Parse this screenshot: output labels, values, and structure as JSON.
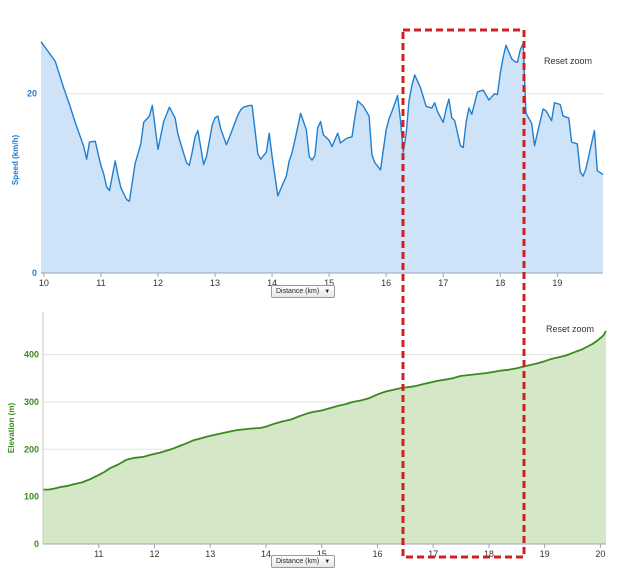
{
  "colors": {
    "speed_line": "#1f7fd0",
    "speed_fill": "#cfe3f8",
    "speed_axis_text": "#1f7fd0",
    "elev_line": "#3a8a1e",
    "elev_fill": "#d4e8c8",
    "elev_axis_text": "#3a8a1e",
    "highlight": "#d11f1f"
  },
  "reset_zoom_label": "Reset zoom",
  "distance_select": {
    "label": "Distance (km)",
    "arrow": "▼"
  },
  "chart_data": [
    {
      "type": "area",
      "ylabel": "Speed (km/h)",
      "xlabel": "",
      "xlim": [
        9.95,
        19.8
      ],
      "ylim": [
        0,
        28
      ],
      "x_ticks": [
        "10",
        "11",
        "12",
        "13",
        "14",
        "15",
        "16",
        "17",
        "18",
        "19"
      ],
      "y_ticks": [
        "0",
        "20"
      ],
      "grid": "horizontal",
      "series": [
        {
          "x": [
            9.95,
            10.2,
            10.35,
            10.45,
            10.55,
            10.7,
            10.75,
            10.8,
            10.9,
            11.0,
            11.05,
            11.1,
            11.15,
            11.25,
            11.3,
            11.35,
            11.45,
            11.5,
            11.6,
            11.7,
            11.75,
            11.85,
            11.9,
            12.0,
            12.1,
            12.2,
            12.3,
            12.35,
            12.4,
            12.5,
            12.55,
            12.6,
            12.65,
            12.7,
            12.8,
            12.85,
            12.95,
            13.0,
            13.05,
            13.1,
            13.2,
            13.25,
            13.4,
            13.45,
            13.5,
            13.6,
            13.65,
            13.75,
            13.8,
            13.9,
            13.95,
            14.0,
            14.1,
            14.2,
            14.25,
            14.3,
            14.35,
            14.4,
            14.5,
            14.6,
            14.65,
            14.7,
            14.75,
            14.8,
            14.85,
            14.9,
            15.0,
            15.05,
            15.15,
            15.2,
            15.3,
            15.4,
            15.45,
            15.5,
            15.6,
            15.7,
            15.75,
            15.8,
            15.9,
            16.0,
            16.05,
            16.1,
            16.2,
            16.25,
            16.3,
            16.35,
            16.4,
            16.45,
            16.5,
            16.6,
            16.7,
            16.8,
            16.85,
            16.9,
            17.0,
            17.05,
            17.1,
            17.15,
            17.2,
            17.3,
            17.35,
            17.4,
            17.45,
            17.5,
            17.6,
            17.7,
            17.8,
            17.9,
            17.95,
            18.0,
            18.05,
            18.1,
            18.2,
            18.25,
            18.3,
            18.35,
            18.4,
            18.45,
            18.55,
            18.6,
            18.65,
            18.75,
            18.8,
            18.9,
            18.95,
            19.05,
            19.1,
            19.2,
            19.25,
            19.35,
            19.4,
            19.45,
            19.5,
            19.6,
            19.65,
            19.7,
            19.8
          ],
          "y": [
            25.8,
            23.6,
            20.6,
            18.8,
            16.8,
            14.1,
            12.7,
            14.6,
            14.7,
            12.0,
            11.0,
            9.6,
            9.2,
            12.5,
            10.9,
            9.5,
            8.2,
            8.0,
            12.2,
            14.4,
            16.8,
            17.5,
            18.7,
            13.8,
            16.9,
            18.5,
            17.3,
            15.5,
            14.4,
            12.3,
            12.0,
            13.5,
            15.2,
            15.9,
            12.1,
            13.0,
            16.5,
            17.3,
            17.5,
            16.1,
            14.3,
            15.1,
            17.6,
            18.2,
            18.5,
            18.7,
            18.7,
            13.3,
            12.7,
            13.5,
            15.6,
            13.0,
            8.6,
            10.1,
            10.8,
            12.5,
            13.4,
            14.8,
            17.8,
            16.0,
            13.0,
            12.6,
            13.1,
            16.2,
            16.9,
            15.4,
            14.8,
            14.1,
            15.6,
            14.5,
            15.0,
            15.2,
            17.3,
            19.2,
            18.6,
            17.5,
            13.2,
            12.3,
            11.5,
            16.0,
            17.2,
            18.0,
            19.8,
            17.0,
            13.5,
            15.6,
            19.2,
            20.9,
            22.1,
            20.7,
            18.6,
            18.4,
            19.0,
            18.0,
            16.8,
            18.3,
            19.4,
            17.3,
            17.0,
            14.2,
            14.0,
            16.8,
            18.4,
            17.7,
            20.2,
            20.4,
            19.3,
            20.0,
            19.9,
            22.3,
            24.1,
            25.4,
            23.9,
            23.6,
            23.5,
            24.9,
            25.6,
            17.8,
            16.7,
            14.2,
            15.6,
            18.3,
            18.1,
            17.0,
            19.0,
            18.8,
            17.5,
            17.3,
            14.6,
            14.4,
            11.3,
            10.8,
            11.6,
            14.5,
            15.9,
            11.4,
            11.0
          ]
        }
      ]
    },
    {
      "type": "area",
      "ylabel": "Elevation (m)",
      "xlabel": "",
      "xlim": [
        10.0,
        20.1
      ],
      "ylim": [
        0,
        490
      ],
      "x_ticks": [
        "11",
        "12",
        "13",
        "14",
        "15",
        "16",
        "17",
        "18",
        "19",
        "20"
      ],
      "y_ticks": [
        "0",
        "100",
        "200",
        "300",
        "400"
      ],
      "grid": "horizontal",
      "series": [
        {
          "x": [
            10.0,
            10.1,
            10.2,
            10.3,
            10.45,
            10.55,
            10.7,
            10.85,
            11.0,
            11.1,
            11.2,
            11.35,
            11.5,
            11.65,
            11.8,
            11.95,
            12.1,
            12.3,
            12.45,
            12.6,
            12.7,
            12.8,
            12.95,
            13.1,
            13.25,
            13.45,
            13.6,
            13.75,
            13.9,
            14.0,
            14.15,
            14.3,
            14.45,
            14.6,
            14.75,
            14.85,
            15.0,
            15.15,
            15.3,
            15.45,
            15.55,
            15.7,
            15.85,
            16.0,
            16.15,
            16.3,
            16.45,
            16.6,
            16.7,
            16.8,
            16.95,
            17.05,
            17.2,
            17.35,
            17.5,
            17.65,
            17.8,
            17.95,
            18.1,
            18.2,
            18.35,
            18.5,
            18.6,
            18.7,
            18.85,
            19.0,
            19.1,
            19.2,
            19.35,
            19.45,
            19.55,
            19.65,
            19.75,
            19.85,
            19.95,
            20.05,
            20.1
          ],
          "y": [
            115,
            115,
            117,
            120,
            123,
            126,
            130,
            137,
            146,
            152,
            160,
            168,
            178,
            182,
            184,
            189,
            193,
            200,
            207,
            214,
            219,
            222,
            227,
            231,
            235,
            240,
            242,
            244,
            245,
            248,
            254,
            259,
            263,
            270,
            276,
            279,
            282,
            287,
            292,
            296,
            300,
            303,
            308,
            316,
            322,
            326,
            330,
            332,
            334,
            337,
            341,
            344,
            347,
            350,
            355,
            357,
            359,
            361,
            364,
            366,
            368,
            371,
            374,
            377,
            381,
            386,
            390,
            393,
            397,
            401,
            406,
            410,
            416,
            422,
            430,
            440,
            450
          ]
        }
      ]
    }
  ]
}
